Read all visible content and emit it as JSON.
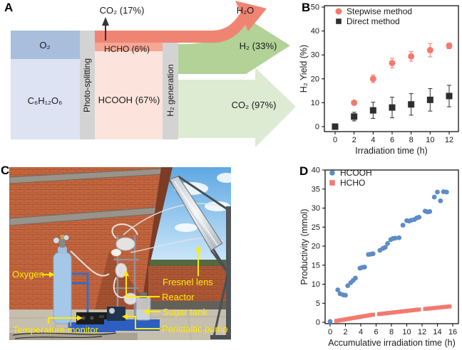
{
  "figure": {
    "background": "#ffffff",
    "panels": {
      "a": "A",
      "b": "B",
      "c": "C",
      "d": "D"
    },
    "panel_a": {
      "labels": {
        "o2": "O₂",
        "glucose": "C₆H₁₂O₆",
        "photo_splitting": "Photo-splitting",
        "hcho": "HCHO (6%)",
        "hcooh": "HCOOH (67%)",
        "co2_top": "CO₂ (17%)",
        "h2_generation": "H₂ generation",
        "h2o": "H₂O",
        "h2_out": "H₂ (33%)",
        "co2_out": "CO₂ (97%)"
      },
      "colors": {
        "o2_block": "#a9bddd",
        "glucose_block": "#dde3f2",
        "process_bar": "#d3d3d3",
        "water_flow": "#f08472",
        "hcho_strip": "#f5a694",
        "hcooh_block": "#fce4dc",
        "h2_arrow": "#b2d297",
        "co2_arrow": "#dcebd1",
        "ink": "#333333"
      }
    },
    "panel_c": {
      "annotations": [
        "Oxygen",
        "Temperature monitor",
        "Reactor",
        "Sugar tank",
        "Peristaltic pump",
        "Fresnel lens"
      ],
      "annotation_color": "#ffeb00"
    }
  },
  "chart_data": [
    {
      "id": "panel_b",
      "type": "scatter",
      "title": "",
      "xlabel": "Irradiation time (h)",
      "ylabel": "H₂ Yield (%)",
      "xlim": [
        0,
        12
      ],
      "ylim": [
        0,
        50
      ],
      "xticks": [
        0,
        2,
        4,
        6,
        8,
        10,
        12
      ],
      "yticks": [
        0,
        10,
        20,
        30,
        40,
        50
      ],
      "grid": false,
      "legend_position": "top-left",
      "series": [
        {
          "name": "Stepwise method",
          "marker": "circle",
          "color": "#f4796e",
          "label_color": "#f4796e",
          "x": [
            0,
            2,
            4,
            6,
            8,
            10,
            12
          ],
          "y": [
            0,
            10,
            20,
            26.6,
            29.4,
            32,
            33.8
          ],
          "yerr": [
            0.6,
            0.8,
            1.6,
            2.0,
            2.0,
            2.8,
            1.2
          ]
        },
        {
          "name": "Direct method",
          "marker": "square",
          "color": "#2e2e2e",
          "label_color": "#2e2e2e",
          "x": [
            0,
            2,
            4,
            6,
            8,
            10,
            12
          ],
          "y": [
            0,
            4.2,
            6.8,
            8.0,
            9.3,
            11.2,
            12.8
          ],
          "yerr": [
            0.8,
            1.8,
            3.4,
            4.3,
            4.5,
            4.7,
            4.5
          ]
        }
      ]
    },
    {
      "id": "panel_d",
      "type": "scatter",
      "title": "",
      "xlabel": "Accumulative irradiation time (h)",
      "ylabel": "Productivity (mmol)",
      "xlim": [
        0,
        16
      ],
      "ylim": [
        0,
        40
      ],
      "xticks": [
        0,
        2,
        4,
        6,
        8,
        10,
        12,
        14,
        16
      ],
      "yticks": [
        0,
        5,
        10,
        15,
        20,
        25,
        30,
        35,
        40
      ],
      "grid": false,
      "legend_position": "top-left",
      "series": [
        {
          "name": "HCOOH",
          "marker": "circle",
          "color": "#5d8cc7",
          "label_color": "#222222",
          "points": [
            [
              0,
              0.2
            ],
            [
              1,
              8.5
            ],
            [
              1.3,
              7.5
            ],
            [
              1.7,
              7.2
            ],
            [
              2,
              7.1
            ],
            [
              2.3,
              9.6
            ],
            [
              2.7,
              10.4
            ],
            [
              3,
              11
            ],
            [
              3.3,
              11.6
            ],
            [
              3.9,
              14.2
            ],
            [
              4.2,
              14.4
            ],
            [
              4.5,
              14.5
            ],
            [
              5,
              17.8
            ],
            [
              5.3,
              17.9
            ],
            [
              5.6,
              18
            ],
            [
              6.5,
              18.9
            ],
            [
              6.9,
              19.4
            ],
            [
              7.2,
              19.7
            ],
            [
              7.5,
              20.7
            ],
            [
              7.9,
              21.7
            ],
            [
              8.2,
              22
            ],
            [
              8.5,
              22.1
            ],
            [
              9,
              22.2
            ],
            [
              9.5,
              25.5
            ],
            [
              10,
              26.7
            ],
            [
              10.3,
              26.6
            ],
            [
              10.6,
              26.8
            ],
            [
              11,
              27
            ],
            [
              11.3,
              27.4
            ],
            [
              11.6,
              27.6
            ],
            [
              12.4,
              29.2
            ],
            [
              12.7,
              29
            ],
            [
              13,
              29.1
            ],
            [
              13.6,
              32.9
            ],
            [
              14,
              34.2
            ],
            [
              14.4,
              31.9
            ],
            [
              14.8,
              34.3
            ],
            [
              15.2,
              34.2
            ]
          ]
        },
        {
          "name": "HCHO",
          "marker": "square",
          "color": "#f4796e",
          "label_color": "#222222",
          "points": [
            [
              0.8,
              0.35
            ],
            [
              1,
              0.42
            ],
            [
              1.2,
              0.49
            ],
            [
              1.4,
              0.56
            ],
            [
              1.6,
              0.62
            ],
            [
              1.8,
              0.69
            ],
            [
              2,
              0.76
            ],
            [
              2.2,
              0.83
            ],
            [
              2.4,
              0.9
            ],
            [
              2.6,
              0.97
            ],
            [
              2.8,
              1.04
            ],
            [
              3,
              1.11
            ],
            [
              3.2,
              1.17
            ],
            [
              3.4,
              1.24
            ],
            [
              3.6,
              1.31
            ],
            [
              3.8,
              1.38
            ],
            [
              4,
              1.45
            ],
            [
              4.2,
              1.52
            ],
            [
              4.4,
              1.59
            ],
            [
              4.6,
              1.66
            ],
            [
              4.8,
              1.72
            ],
            [
              5,
              1.79
            ],
            [
              5.2,
              1.86
            ],
            [
              5.4,
              1.93
            ],
            [
              5.6,
              2
            ],
            [
              6.4,
              2.15
            ],
            [
              6.6,
              2.2
            ],
            [
              6.8,
              2.24
            ],
            [
              7,
              2.29
            ],
            [
              7.2,
              2.33
            ],
            [
              7.4,
              2.38
            ],
            [
              7.6,
              2.43
            ],
            [
              7.8,
              2.47
            ],
            [
              8,
              2.52
            ],
            [
              8.2,
              2.57
            ],
            [
              8.4,
              2.61
            ],
            [
              8.6,
              2.66
            ],
            [
              8.8,
              2.7
            ],
            [
              9,
              2.75
            ],
            [
              9.2,
              2.8
            ],
            [
              9.4,
              2.84
            ],
            [
              9.6,
              2.89
            ],
            [
              9.8,
              2.93
            ],
            [
              10,
              2.98
            ],
            [
              10.2,
              3.03
            ],
            [
              10.4,
              3.07
            ],
            [
              10.6,
              3.12
            ],
            [
              10.8,
              3.17
            ],
            [
              11,
              3.21
            ],
            [
              11.2,
              3.26
            ],
            [
              11.4,
              3.3
            ],
            [
              11.6,
              3.35
            ],
            [
              12.4,
              3.5
            ],
            [
              12.6,
              3.54
            ],
            [
              12.8,
              3.58
            ],
            [
              13,
              3.62
            ],
            [
              13.2,
              3.66
            ],
            [
              13.4,
              3.7
            ],
            [
              13.6,
              3.74
            ],
            [
              13.8,
              3.79
            ],
            [
              14,
              3.83
            ],
            [
              14.2,
              3.87
            ],
            [
              14.4,
              3.91
            ],
            [
              14.6,
              3.95
            ],
            [
              14.8,
              3.99
            ],
            [
              15,
              4.03
            ],
            [
              15.2,
              4.07
            ],
            [
              15.4,
              4.12
            ],
            [
              15.6,
              4.16
            ]
          ]
        }
      ]
    }
  ]
}
